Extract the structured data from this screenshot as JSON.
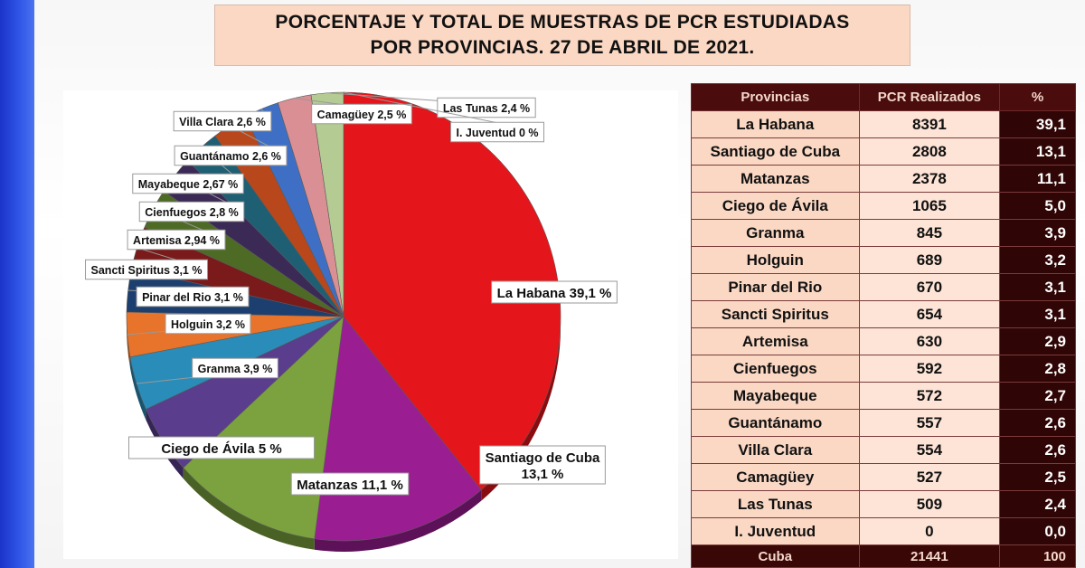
{
  "title": {
    "line1": "PORCENTAJE Y TOTAL DE MUESTRAS DE PCR ESTUDIADAS",
    "line2": "POR PROVINCIAS. 27 DE ABRIL DE 2021."
  },
  "chart_data": {
    "type": "pie",
    "slices": [
      {
        "label": "La Habana 39,1 %",
        "value": 39.1,
        "color": "#e4161b"
      },
      {
        "label": "Santiago de Cuba\n13,1 %",
        "value": 13.1,
        "color": "#9b1d92"
      },
      {
        "label": "Matanzas 11,1 %",
        "value": 11.1,
        "color": "#7ba23f"
      },
      {
        "label": "Ciego de Ávila 5 %",
        "value": 5.0,
        "color": "#5a3d8c"
      },
      {
        "label": "Granma 3,9 %",
        "value": 3.9,
        "color": "#2a8cb8"
      },
      {
        "label": "Holguin 3,2 %",
        "value": 3.2,
        "color": "#e8732a"
      },
      {
        "label": "Pinar del Rio 3,1 %",
        "value": 3.1,
        "color": "#1d3f70"
      },
      {
        "label": "Sancti Spiritus 3,1 %",
        "value": 3.1,
        "color": "#7a1a1a"
      },
      {
        "label": "Artemisa 2,94 %",
        "value": 2.94,
        "color": "#4e6b25"
      },
      {
        "label": "Cienfuegos 2,8 %",
        "value": 2.8,
        "color": "#3b2a55"
      },
      {
        "label": "Mayabeque 2,67 %",
        "value": 2.67,
        "color": "#1f5f73"
      },
      {
        "label": "Guantánamo 2,6 %",
        "value": 2.6,
        "color": "#b9471c"
      },
      {
        "label": "Villa Clara 2,6 %",
        "value": 2.6,
        "color": "#3f6fc4"
      },
      {
        "label": "Camagüey 2,5 %",
        "value": 2.5,
        "color": "#d98f93"
      },
      {
        "label": "Las Tunas 2,4 %",
        "value": 2.4,
        "color": "#b4cc93"
      },
      {
        "label": "I. Juventud 0 %",
        "value": 0.0,
        "color": "#c9b8de"
      }
    ]
  },
  "table": {
    "headers": [
      "Provincias",
      "PCR Realizados",
      "%"
    ],
    "rows": [
      [
        "La Habana",
        "8391",
        "39,1"
      ],
      [
        "Santiago de Cuba",
        "2808",
        "13,1"
      ],
      [
        "Matanzas",
        "2378",
        "11,1"
      ],
      [
        "Ciego de Ávila",
        "1065",
        "5,0"
      ],
      [
        "Granma",
        "845",
        "3,9"
      ],
      [
        "Holguin",
        "689",
        "3,2"
      ],
      [
        "Pinar del Rio",
        "670",
        "3,1"
      ],
      [
        "Sancti Spiritus",
        "654",
        "3,1"
      ],
      [
        "Artemisa",
        "630",
        "2,9"
      ],
      [
        "Cienfuegos",
        "592",
        "2,8"
      ],
      [
        "Mayabeque",
        "572",
        "2,7"
      ],
      [
        "Guantánamo",
        "557",
        "2,6"
      ],
      [
        "Villa Clara",
        "554",
        "2,6"
      ],
      [
        "Camagüey",
        "527",
        "2,5"
      ],
      [
        "Las Tunas",
        "509",
        "2,4"
      ],
      [
        "I.  Juventud",
        "0",
        "0,0"
      ]
    ],
    "total": [
      "Cuba",
      "21441",
      "100"
    ]
  }
}
